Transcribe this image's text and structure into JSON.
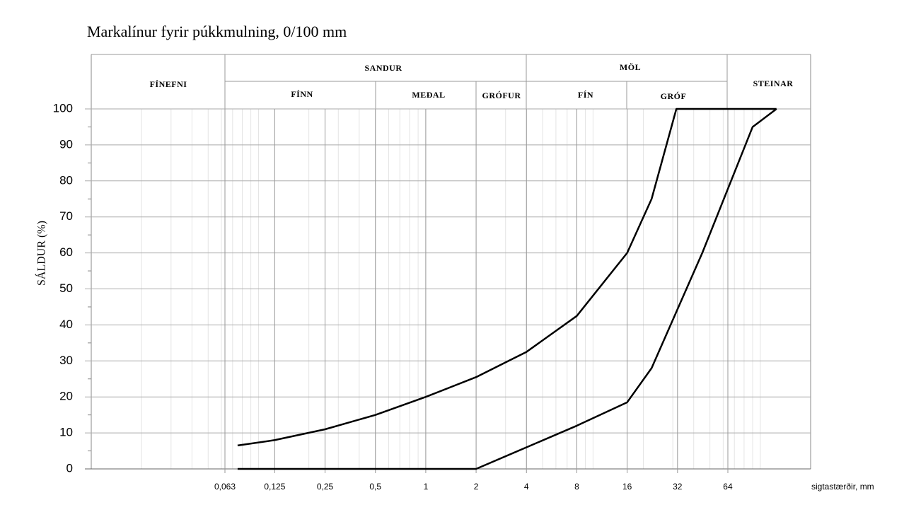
{
  "chart_data": {
    "type": "line",
    "title": "Markalínur fyrir púkkmulning, 0/100 mm",
    "y_label": "SÁLDUR (%)",
    "x_label": "sigtastærðir, mm",
    "zones": {
      "fines": "FÍNEFNI",
      "sand": "SANDUR",
      "sand_fine": "FÍNN",
      "sand_medium": "MEÐAL",
      "sand_coarse": "GRÓFUR",
      "gravel": "MÖL",
      "gravel_fine": "FÍN",
      "gravel_coarse": "GRÓF",
      "stones": "STEINAR"
    },
    "log_x": true,
    "grid": true,
    "minor_grid": true,
    "xlim": [
      0.01,
      200
    ],
    "ylim": [
      0,
      100
    ],
    "xticks": [
      {
        "value": 0.063,
        "label": "0,063"
      },
      {
        "value": 0.125,
        "label": "0,125"
      },
      {
        "value": 0.25,
        "label": "0,25"
      },
      {
        "value": 0.5,
        "label": "0,5"
      },
      1,
      2,
      4,
      8,
      16,
      32,
      64
    ],
    "yticks": [
      0,
      10,
      20,
      30,
      40,
      50,
      60,
      70,
      80,
      90,
      100
    ],
    "series": [
      {
        "color": "#000000",
        "x": [
          0.075,
          0.125,
          0.25,
          0.5,
          1,
          2,
          4,
          8,
          16,
          22.4,
          31.5,
          125
        ],
        "values": [
          6.5,
          8,
          11,
          15,
          20,
          25.5,
          32.5,
          42.5,
          60,
          75,
          100,
          100
        ]
      },
      {
        "color": "#000000",
        "x": [
          0.075,
          2,
          8,
          16,
          22.4,
          45,
          90,
          125
        ],
        "values": [
          0,
          0,
          12,
          18.5,
          28,
          60,
          95,
          100
        ]
      }
    ]
  }
}
